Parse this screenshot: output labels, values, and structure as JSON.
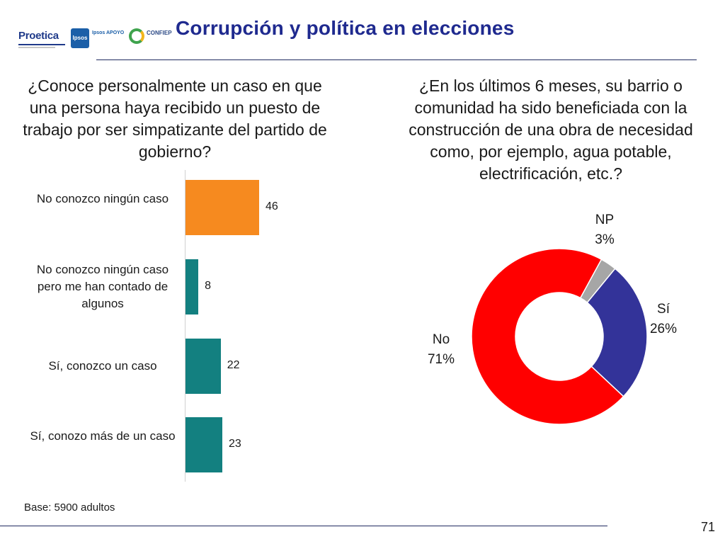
{
  "header": {
    "title": "Corrupción y política en elecciones",
    "logos": {
      "proetica": "Proetica",
      "ipsos": "Ipsos",
      "ipsos_tagline": "Ipsos APOYO",
      "confiep": "CONFIEP"
    }
  },
  "questions": {
    "left": "¿Conoce personalmente un caso en que una persona haya recibido un puesto de trabajo por ser simpatizante del partido de gobierno?",
    "right": "¿En los últimos 6 meses, su barrio o comunidad ha sido beneficiada con la construcción de una obra de necesidad como, por ejemplo, agua potable, electrificación, etc.?"
  },
  "chart_data": [
    {
      "type": "bar",
      "orientation": "horizontal",
      "categories": [
        "No conozco ningún caso",
        "No conozco ningún caso pero me han contado de algunos",
        "Sí, conozco un caso",
        "Sí, conozo más de un caso"
      ],
      "values": [
        46,
        8,
        22,
        23
      ],
      "colors": [
        "#f68a1f",
        "#138080",
        "#138080",
        "#138080"
      ],
      "value_labels": [
        "46",
        "8",
        "22",
        "23"
      ]
    },
    {
      "type": "pie",
      "variant": "donut",
      "slices": [
        {
          "label": "NP",
          "value": 3,
          "value_label": "3%",
          "color": "#a6a6a6"
        },
        {
          "label": "Sí",
          "value": 26,
          "value_label": "26%",
          "color": "#333399"
        },
        {
          "label": "No",
          "value": 71,
          "value_label": "71%",
          "color": "#ff0000"
        }
      ]
    }
  ],
  "footer": {
    "base_note": "Base: 5900 adultos",
    "page_number": "71"
  }
}
